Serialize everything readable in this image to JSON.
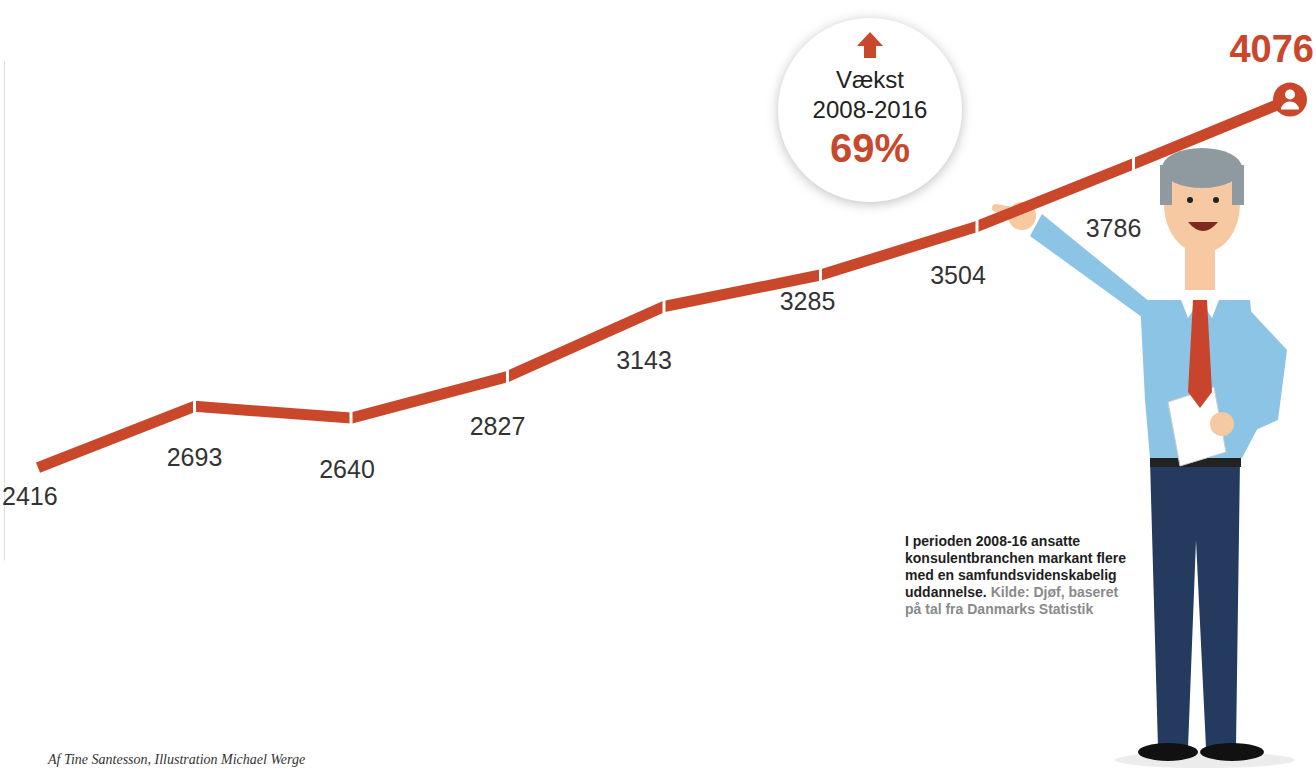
{
  "chart_data": {
    "type": "line",
    "categories": [
      null,
      null,
      null,
      null,
      null,
      null,
      null,
      null,
      null
    ],
    "values": [
      2416,
      2693,
      2640,
      2827,
      3143,
      3285,
      3504,
      3786,
      4076
    ],
    "color": "#c9482c",
    "ylim": [
      2000,
      4250
    ],
    "yticks": [],
    "tick_labels": false,
    "data_labels": true,
    "annotation": {
      "lines": [
        "Vækst",
        "2008-2016"
      ],
      "highlight": "69%"
    },
    "caption": "I perioden 2008-16 ansatte konsulentbranchen markant flere med en samfundsvidenskabelig uddannelse.",
    "source": "Kilde: Djøf, baseret på tal fra Danmarks Statistik",
    "byline": "Af Tine Santesson, Illustration Michael Werge"
  }
}
